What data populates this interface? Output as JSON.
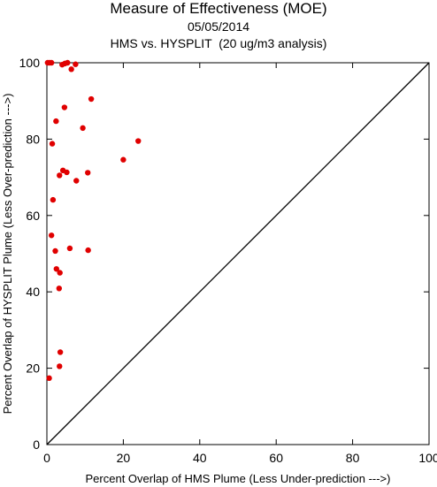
{
  "chart_data": {
    "type": "scatter",
    "title": "Measure of Effectiveness (MOE)",
    "subtitle": "05/05/2014",
    "subtitle2": "HMS vs. HYSPLIT  (20 ug/m3 analysis)",
    "xlabel": "Percent Overlap of HMS Plume (Less Under-prediction --->)",
    "ylabel": "Percent Overlap of HYSPLIT Plume (Less Over-prediction --->)",
    "xlim": [
      0,
      100
    ],
    "ylim": [
      0,
      100
    ],
    "xticks": [
      0,
      20,
      40,
      60,
      80,
      100
    ],
    "yticks": [
      0,
      20,
      40,
      60,
      80,
      100
    ],
    "grid": false,
    "reference_line": "y = x",
    "marker_color": "#e00000",
    "points": [
      {
        "x": 0.2,
        "y": 100
      },
      {
        "x": 0.7,
        "y": 100
      },
      {
        "x": 1.2,
        "y": 100
      },
      {
        "x": 4.0,
        "y": 99.5
      },
      {
        "x": 4.7,
        "y": 99.8
      },
      {
        "x": 5.4,
        "y": 100
      },
      {
        "x": 7.5,
        "y": 99.6
      },
      {
        "x": 6.4,
        "y": 98.3
      },
      {
        "x": 11.6,
        "y": 90.5
      },
      {
        "x": 4.6,
        "y": 88.3
      },
      {
        "x": 2.4,
        "y": 84.7
      },
      {
        "x": 9.4,
        "y": 82.9
      },
      {
        "x": 1.4,
        "y": 78.8
      },
      {
        "x": 23.9,
        "y": 79.5
      },
      {
        "x": 20.0,
        "y": 74.6
      },
      {
        "x": 4.2,
        "y": 71.8
      },
      {
        "x": 5.2,
        "y": 71.3
      },
      {
        "x": 3.3,
        "y": 70.5
      },
      {
        "x": 10.7,
        "y": 71.2
      },
      {
        "x": 7.7,
        "y": 69.1
      },
      {
        "x": 1.6,
        "y": 64.1
      },
      {
        "x": 1.2,
        "y": 54.8
      },
      {
        "x": 6.0,
        "y": 51.4
      },
      {
        "x": 2.2,
        "y": 50.7
      },
      {
        "x": 10.8,
        "y": 50.9
      },
      {
        "x": 2.5,
        "y": 46.0
      },
      {
        "x": 3.4,
        "y": 45.0
      },
      {
        "x": 3.2,
        "y": 40.9
      },
      {
        "x": 3.5,
        "y": 24.2
      },
      {
        "x": 3.3,
        "y": 20.5
      },
      {
        "x": 0.6,
        "y": 17.4
      }
    ]
  }
}
